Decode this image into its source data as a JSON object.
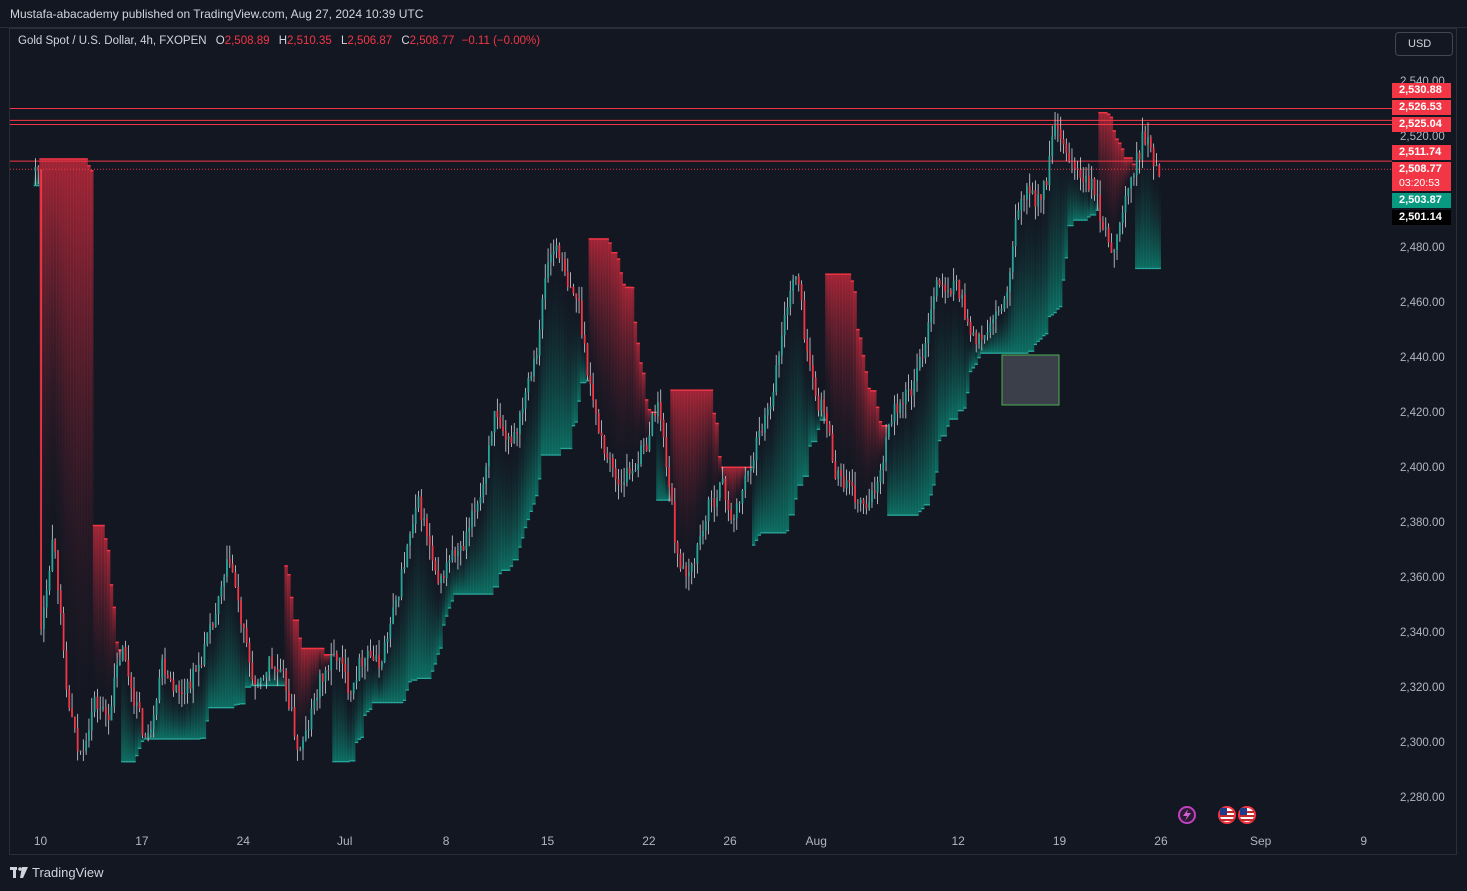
{
  "header": {
    "published": "Mustafa-abacademy published on TradingView.com, Aug 27, 2024 10:39 UTC"
  },
  "legend": {
    "symbol": "Gold Spot / U.S. Dollar, 4h, FXOPEN",
    "o_label": "O",
    "o": "2,508.89",
    "h_label": "H",
    "h": "2,510.35",
    "l_label": "L",
    "l": "2,506.87",
    "c_label": "C",
    "c": "2,508.77",
    "change": "−0.11 (−0.00%)"
  },
  "currency_button": "USD",
  "price_tags": [
    {
      "label": "2,530.88",
      "color": "#f23645"
    },
    {
      "label": "2,526.53",
      "color": "#f23645"
    },
    {
      "label": "2,525.04",
      "color": "#f23645"
    },
    {
      "label": "2,511.74",
      "color": "#f23645"
    },
    {
      "label": "2,508.77",
      "color": "#f23645"
    },
    {
      "label": "03:20:53",
      "color": "#f23645"
    },
    {
      "label": "2,503.87",
      "color": "#089981"
    },
    {
      "label": "2,501.14",
      "color": "#000000"
    }
  ],
  "footer": {
    "brand": "TradingView",
    "logo_icon": "tradingview-logo-icon"
  },
  "event_icons": [
    "lightning-event-icon",
    "us-flag-event-icon",
    "us-flag-event-icon"
  ],
  "colors": {
    "bull": "#26a69a",
    "bear": "#f23645",
    "wick": "#d1d4dc",
    "background": "#131722",
    "band_bull": "#0d7a6b",
    "band_bear": "#b8283a"
  },
  "chart_data": {
    "type": "candlestick",
    "symbol": "XAUUSD",
    "interval": "4h",
    "y_axis": {
      "min": 2270,
      "max": 2545,
      "ticks": [
        "2,280.00",
        "2,300.00",
        "2,320.00",
        "2,340.00",
        "2,360.00",
        "2,380.00",
        "2,400.00",
        "2,420.00",
        "2,440.00",
        "2,460.00",
        "2,480.00",
        "2,520.00",
        "2,540.00"
      ]
    },
    "x_axis": {
      "ticks": [
        "10",
        "17",
        "24",
        "Jul",
        "8",
        "15",
        "22",
        "26",
        "Aug",
        "12",
        "19",
        "26",
        "Sep",
        "9"
      ]
    },
    "horizontal_levels": [
      2530.88,
      2526.53,
      2525.04,
      2511.74
    ],
    "current_price": 2508.77,
    "anchors": [
      {
        "d": 0,
        "p": 2342
      },
      {
        "d": 0.8,
        "p": 2378
      },
      {
        "d": 1.5,
        "p": 2320
      },
      {
        "d": 2.3,
        "p": 2295
      },
      {
        "d": 3.2,
        "p": 2315
      },
      {
        "d": 4,
        "p": 2310
      },
      {
        "d": 4.8,
        "p": 2335
      },
      {
        "d": 5.5,
        "p": 2318
      },
      {
        "d": 6.3,
        "p": 2300
      },
      {
        "d": 7.2,
        "p": 2330
      },
      {
        "d": 8.2,
        "p": 2318
      },
      {
        "d": 9.2,
        "p": 2326
      },
      {
        "d": 10.3,
        "p": 2345
      },
      {
        "d": 11.2,
        "p": 2368
      },
      {
        "d": 12,
        "p": 2340
      },
      {
        "d": 12.8,
        "p": 2318
      },
      {
        "d": 13.5,
        "p": 2330
      },
      {
        "d": 14.5,
        "p": 2322
      },
      {
        "d": 15.3,
        "p": 2296
      },
      {
        "d": 15.8,
        "p": 2305
      },
      {
        "d": 16.5,
        "p": 2322
      },
      {
        "d": 17.5,
        "p": 2333
      },
      {
        "d": 18.3,
        "p": 2320
      },
      {
        "d": 19.3,
        "p": 2335
      },
      {
        "d": 20,
        "p": 2328
      },
      {
        "d": 20.8,
        "p": 2345
      },
      {
        "d": 21.6,
        "p": 2368
      },
      {
        "d": 22.4,
        "p": 2388
      },
      {
        "d": 23,
        "p": 2372
      },
      {
        "d": 23.5,
        "p": 2356
      },
      {
        "d": 24.2,
        "p": 2368
      },
      {
        "d": 25,
        "p": 2370
      },
      {
        "d": 25.6,
        "p": 2383
      },
      {
        "d": 26.2,
        "p": 2395
      },
      {
        "d": 26.8,
        "p": 2420
      },
      {
        "d": 27.5,
        "p": 2408
      },
      {
        "d": 28.2,
        "p": 2415
      },
      {
        "d": 28.8,
        "p": 2432
      },
      {
        "d": 29.4,
        "p": 2445
      },
      {
        "d": 30,
        "p": 2475
      },
      {
        "d": 30.6,
        "p": 2482
      },
      {
        "d": 31.2,
        "p": 2465
      },
      {
        "d": 31.8,
        "p": 2462
      },
      {
        "d": 32.3,
        "p": 2440
      },
      {
        "d": 32.8,
        "p": 2420
      },
      {
        "d": 33.5,
        "p": 2405
      },
      {
        "d": 34.2,
        "p": 2395
      },
      {
        "d": 35,
        "p": 2400
      },
      {
        "d": 35.8,
        "p": 2408
      },
      {
        "d": 36.5,
        "p": 2425
      },
      {
        "d": 37,
        "p": 2405
      },
      {
        "d": 37.6,
        "p": 2372
      },
      {
        "d": 38.2,
        "p": 2358
      },
      {
        "d": 38.8,
        "p": 2370
      },
      {
        "d": 39.5,
        "p": 2385
      },
      {
        "d": 40.3,
        "p": 2395
      },
      {
        "d": 41,
        "p": 2380
      },
      {
        "d": 41.8,
        "p": 2398
      },
      {
        "d": 42.5,
        "p": 2412
      },
      {
        "d": 43.2,
        "p": 2425
      },
      {
        "d": 43.8,
        "p": 2445
      },
      {
        "d": 44.3,
        "p": 2465
      },
      {
        "d": 44.8,
        "p": 2470
      },
      {
        "d": 45.3,
        "p": 2445
      },
      {
        "d": 45.8,
        "p": 2428
      },
      {
        "d": 46.5,
        "p": 2418
      },
      {
        "d": 47,
        "p": 2400
      },
      {
        "d": 47.6,
        "p": 2395
      },
      {
        "d": 48.3,
        "p": 2388
      },
      {
        "d": 49,
        "p": 2385
      },
      {
        "d": 49.7,
        "p": 2400
      },
      {
        "d": 50.3,
        "p": 2420
      },
      {
        "d": 51,
        "p": 2425
      },
      {
        "d": 51.7,
        "p": 2430
      },
      {
        "d": 52.3,
        "p": 2445
      },
      {
        "d": 53,
        "p": 2470
      },
      {
        "d": 53.6,
        "p": 2462
      },
      {
        "d": 54.2,
        "p": 2468
      },
      {
        "d": 54.8,
        "p": 2455
      },
      {
        "d": 55.4,
        "p": 2445
      },
      {
        "d": 56,
        "p": 2450
      },
      {
        "d": 56.6,
        "p": 2455
      },
      {
        "d": 57.3,
        "p": 2465
      },
      {
        "d": 57.8,
        "p": 2495
      },
      {
        "d": 58.4,
        "p": 2500
      },
      {
        "d": 59,
        "p": 2498
      },
      {
        "d": 59.5,
        "p": 2503
      },
      {
        "d": 60,
        "p": 2525
      },
      {
        "d": 60.5,
        "p": 2515
      },
      {
        "d": 61,
        "p": 2512
      },
      {
        "d": 61.6,
        "p": 2505
      },
      {
        "d": 62.3,
        "p": 2502
      },
      {
        "d": 63,
        "p": 2485
      },
      {
        "d": 63.6,
        "p": 2480
      },
      {
        "d": 64.2,
        "p": 2498
      },
      {
        "d": 64.8,
        "p": 2510
      },
      {
        "d": 65.3,
        "p": 2522
      },
      {
        "d": 65.8,
        "p": 2513
      },
      {
        "d": 66.3,
        "p": 2508
      }
    ]
  }
}
